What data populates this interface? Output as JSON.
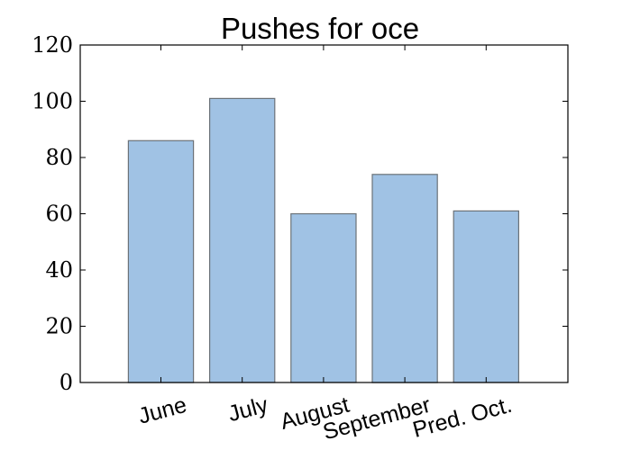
{
  "chart_data": {
    "type": "bar",
    "title": "Pushes for oce",
    "xlabel": "",
    "ylabel": "",
    "categories": [
      "June",
      "July",
      "August",
      "September",
      "Pred. Oct."
    ],
    "values": [
      86,
      101,
      60,
      74,
      61
    ],
    "ylim": [
      0,
      120
    ],
    "yticks": [
      "0",
      "20",
      "40",
      "60",
      "80",
      "100",
      "120"
    ],
    "grid": false,
    "legend": "none",
    "bar_color": "#a0c2e4",
    "bar_edge_color": "#6b7278"
  }
}
